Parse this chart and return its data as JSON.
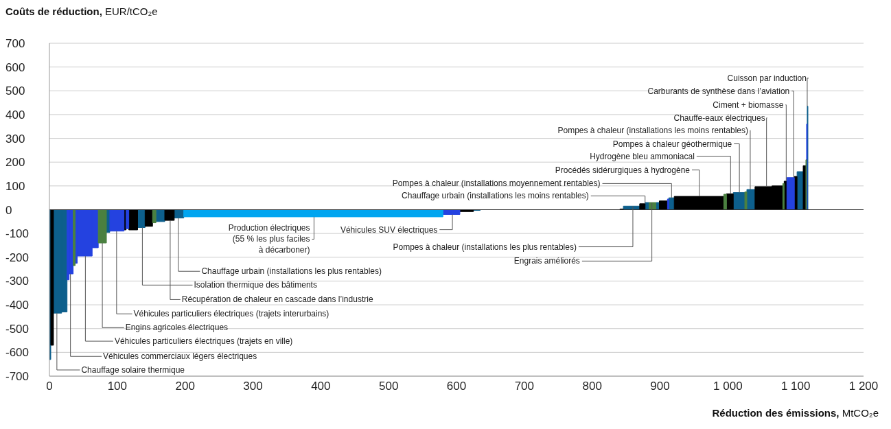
{
  "chart_data": {
    "type": "area",
    "ylabel": "Coûts de réduction, EUR/tCO₂e",
    "xlabel": "Réduction des émissions, MtCO₂e",
    "xlim": [
      0,
      1200
    ],
    "ylim": [
      -700,
      700
    ],
    "xticks": [
      0,
      100,
      200,
      300,
      400,
      500,
      600,
      700,
      800,
      900,
      {
        "value": 1000,
        "label": "1 000"
      },
      {
        "value": 1100,
        "label": "1 100"
      },
      {
        "value": 1200,
        "label": "1 200"
      }
    ],
    "yticks": [
      -700,
      -600,
      -500,
      -400,
      -300,
      -200,
      -100,
      0,
      100,
      200,
      300,
      400,
      500,
      600,
      700
    ],
    "grid": "y",
    "legend": false,
    "ref_lines": [
      {
        "axis": "y",
        "value": 0,
        "color": "#333333"
      }
    ],
    "series": [
      {
        "color": "#0d5f8c",
        "x": [
          0,
          0,
          2,
          2,
          6,
          6,
          11,
          18,
          18,
          18,
          18,
          26,
          26,
          84,
          84,
          89,
          89,
          130,
          130,
          137,
          141,
          141,
          157,
          157,
          170,
          170,
          184,
          184,
          190,
          198,
          198,
          625,
          625,
          635,
          635,
          846,
          846,
          860,
          870,
          870,
          878,
          878,
          884,
          884,
          894,
          894,
          899,
          899,
          913,
          913,
          917,
          921,
          921,
          1008,
          1008,
          1017,
          1025,
          1025,
          1028,
          1028,
          1033,
          1040,
          1040,
          1102,
          1102,
          1111,
          1111,
          1117,
          1117,
          1118,
          1118
        ],
        "values": [
          0,
          -630,
          -630,
          0,
          0,
          -435,
          -435,
          -435,
          0,
          0,
          -430,
          -430,
          0,
          0,
          -95,
          -95,
          0,
          0,
          -75,
          -75,
          -75,
          0,
          0,
          -50,
          -50,
          0,
          0,
          -35,
          -35,
          -35,
          0,
          0,
          -3,
          -3,
          0,
          0,
          15,
          15,
          15,
          0,
          0,
          30,
          30,
          0,
          0,
          30,
          30,
          0,
          0,
          50,
          50,
          50,
          0,
          0,
          72,
          72,
          72,
          0,
          0,
          85,
          85,
          85,
          0,
          0,
          160,
          160,
          0,
          0,
          435,
          435,
          0
        ]
      },
      {
        "color": "#000000",
        "x": [
          2,
          2,
          6,
          6,
          110,
          110,
          113,
          113,
          117,
          117,
          130,
          130,
          141,
          141,
          152,
          152,
          170,
          170,
          178,
          184,
          184,
          605,
          605,
          625,
          625,
          841,
          841,
          846,
          846,
          870,
          870,
          878,
          878,
          899,
          899,
          911,
          911,
          921,
          921,
          958,
          994,
          994,
          998,
          998,
          1004,
          1008,
          1008,
          1040,
          1040,
          1057,
          1065,
          1065,
          1065,
          1065,
          1081,
          1081,
          1083,
          1083,
          1086,
          1087,
          1087,
          1098,
          1098,
          1102,
          1102,
          1111,
          1111,
          1115,
          1115
        ],
        "values": [
          0,
          -570,
          -570,
          0,
          0,
          -85,
          -85,
          0,
          0,
          -85,
          -85,
          0,
          0,
          -70,
          -70,
          0,
          0,
          -45,
          -45,
          -45,
          0,
          0,
          -8,
          -8,
          0,
          0,
          3,
          3,
          0,
          0,
          25,
          25,
          0,
          0,
          37,
          37,
          0,
          0,
          56,
          56,
          56,
          0,
          0,
          67,
          67,
          67,
          0,
          0,
          97,
          97,
          97,
          0,
          0,
          100,
          100,
          0,
          0,
          120,
          120,
          120,
          0,
          0,
          140,
          140,
          0,
          0,
          185,
          185,
          0
        ]
      },
      {
        "color": "#2442e0",
        "x": [
          26,
          26,
          29,
          29,
          29,
          29,
          31,
          35,
          35,
          38,
          38,
          41,
          41,
          41,
          41,
          53,
          63,
          63,
          63,
          63,
          72,
          72,
          89,
          89,
          99,
          110,
          110,
          113,
          113,
          117,
          117,
          580,
          580,
          594,
          605,
          605,
          911,
          911,
          913,
          913,
          1087,
          1087,
          1097,
          1098,
          1098,
          1116,
          1116,
          1117,
          1117
        ],
        "values": [
          0,
          -295,
          -295,
          0,
          0,
          -270,
          -270,
          -270,
          0,
          0,
          -225,
          -225,
          0,
          0,
          -195,
          -195,
          -195,
          0,
          0,
          -160,
          -160,
          0,
          0,
          -90,
          -90,
          -90,
          0,
          0,
          -80,
          -80,
          0,
          0,
          -20,
          -20,
          -20,
          0,
          0,
          45,
          45,
          0,
          0,
          135,
          135,
          135,
          0,
          0,
          360,
          360,
          0
        ]
      },
      {
        "color": "#4a8040",
        "x": [
          35,
          35,
          38,
          38,
          72,
          72,
          78,
          84,
          84,
          152,
          152,
          157,
          157,
          884,
          884,
          888,
          894,
          894,
          994,
          994,
          998,
          998,
          1025,
          1025,
          1028,
          1028,
          1081,
          1081,
          1083,
          1083,
          1115,
          1115,
          1116,
          1116
        ],
        "values": [
          0,
          -235,
          -235,
          0,
          0,
          -140,
          -140,
          -140,
          0,
          0,
          -55,
          -55,
          0,
          0,
          30,
          30,
          30,
          0,
          0,
          65,
          65,
          0,
          0,
          75,
          75,
          0,
          0,
          110,
          110,
          0,
          0,
          210,
          210,
          0
        ]
      },
      {
        "color": "#00a5f0",
        "x": [
          198,
          198,
          390,
          580,
          580
        ],
        "values": [
          0,
          -30,
          -30,
          -30,
          0
        ]
      }
    ],
    "annotations": [
      {
        "text": "Chauffage solaire thermique",
        "x": 11,
        "y": -435
      },
      {
        "text": "Véhicules commerciaux légers électriques",
        "x": 31,
        "y": -270
      },
      {
        "text": "Véhicules particuliers électriques (trajets en ville)",
        "x": 53,
        "y": -195
      },
      {
        "text": "Engins agricoles électriques",
        "x": 78,
        "y": -140
      },
      {
        "text": "Véhicules particuliers électriques (trajets interurbains)",
        "x": 99,
        "y": -90
      },
      {
        "text": "Récupération de chaleur en cascade dans l’industrie",
        "x": 178,
        "y": -45
      },
      {
        "text": "Isolation thermique des bâtiments",
        "x": 137,
        "y": -75
      },
      {
        "text": "Chauffage urbain (installations les plus rentables)",
        "x": 190,
        "y": -35
      },
      {
        "text": "Production électriques\n(55 % les plus faciles\nà décarboner)",
        "x": 390,
        "y": -30
      },
      {
        "text": "Véhicules SUV électriques",
        "x": 594,
        "y": -20
      },
      {
        "text": "Pompes à chaleur (installations les plus rentables)",
        "x": 860,
        "y": 15
      },
      {
        "text": "Engrais améliorés",
        "x": 888,
        "y": 30
      },
      {
        "text": "Chauffage urbain (installations les moins rentables)",
        "x": 878,
        "y": 25
      },
      {
        "text": "Pompes à chaleur (installations moyennement rentables)",
        "x": 917,
        "y": 50
      },
      {
        "text": "Procédés sidérurgiques à hydrogène",
        "x": 958,
        "y": 56
      },
      {
        "text": "Hydrogène bleu ammoniacal",
        "x": 1004,
        "y": 67
      },
      {
        "text": "Pompes à chaleur géothermique",
        "x": 1017,
        "y": 72
      },
      {
        "text": "Pompes à chaleur (installations les moins rentables)",
        "x": 1033,
        "y": 85
      },
      {
        "text": "Chauffe-eaux électriques",
        "x": 1057,
        "y": 97
      },
      {
        "text": "Ciment + biomasse",
        "x": 1086,
        "y": 120
      },
      {
        "text": "Carburants de synthèse dans l’aviation",
        "x": 1097,
        "y": 135
      },
      {
        "text": "Cuisson par induction",
        "x": 1117,
        "y": 435
      }
    ]
  }
}
